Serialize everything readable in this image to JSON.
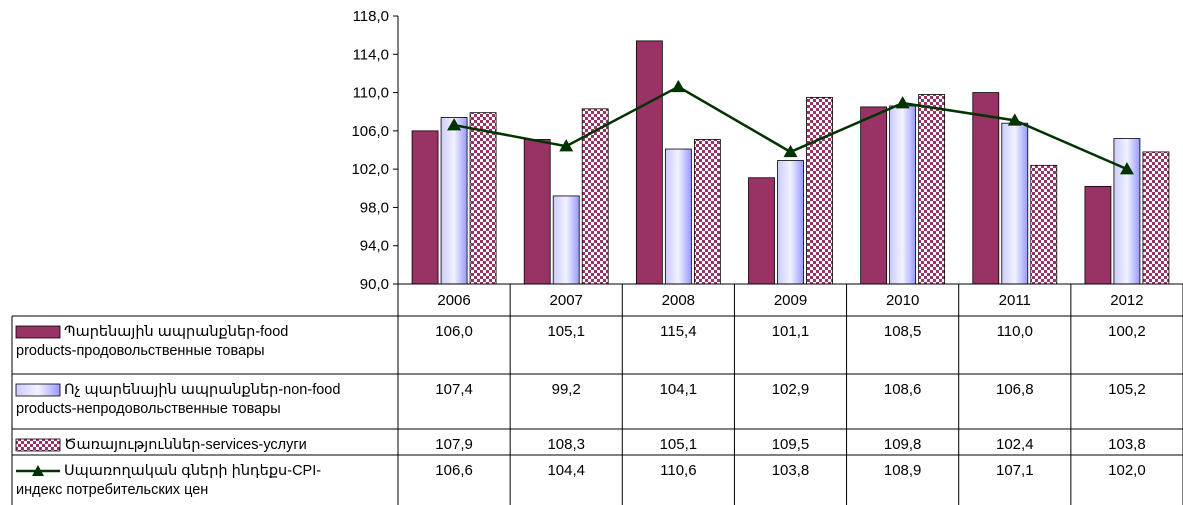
{
  "colors": {
    "food": "#993366",
    "nonfood": "#9999ff",
    "services_a": "#993366",
    "services_b": "#ffffff",
    "cpi": "#003300",
    "plot_bg": "#ffffff",
    "grid": "#000000"
  },
  "chart_data": {
    "type": "bar",
    "categories": [
      "2006",
      "2007",
      "2008",
      "2009",
      "2010",
      "2011",
      "2012"
    ],
    "ylim": [
      90,
      118
    ],
    "yticks": [
      "90,0",
      "94,0",
      "98,0",
      "102,0",
      "106,0",
      "110,0",
      "114,0",
      "118,0"
    ],
    "series": [
      {
        "key": "food",
        "chart": "bar",
        "name_lines": [
          "Պարենային ապրանքներ-food",
          "products-продовольственные товары"
        ],
        "values": [
          106.0,
          105.1,
          115.4,
          101.1,
          108.5,
          110.0,
          100.2
        ],
        "labels": [
          "106,0",
          "105,1",
          "115,4",
          "101,1",
          "108,5",
          "110,0",
          "100,2"
        ]
      },
      {
        "key": "nonfood",
        "chart": "bar",
        "name_lines": [
          "Ոչ պարենային ապրանքներ-non-food",
          "products-непродовольственные товары"
        ],
        "values": [
          107.4,
          99.2,
          104.1,
          102.9,
          108.6,
          106.8,
          105.2
        ],
        "labels": [
          "107,4",
          "99,2",
          "104,1",
          "102,9",
          "108,6",
          "106,8",
          "105,2"
        ]
      },
      {
        "key": "services",
        "chart": "bar",
        "name_lines": [
          "Ծառայություններ-services-услуги"
        ],
        "values": [
          107.9,
          108.3,
          105.1,
          109.5,
          109.8,
          102.4,
          103.8
        ],
        "labels": [
          "107,9",
          "108,3",
          "105,1",
          "109,5",
          "109,8",
          "102,4",
          "103,8"
        ]
      },
      {
        "key": "cpi",
        "chart": "line",
        "name_lines": [
          "Սպառողական գների ինդեքս-CPI-",
          "индекс потребительских цен"
        ],
        "values": [
          106.6,
          104.4,
          110.6,
          103.8,
          108.9,
          107.1,
          102.0
        ],
        "labels": [
          "106,6",
          "104,4",
          "110,6",
          "103,8",
          "108,9",
          "107,1",
          "102,0"
        ]
      }
    ]
  }
}
